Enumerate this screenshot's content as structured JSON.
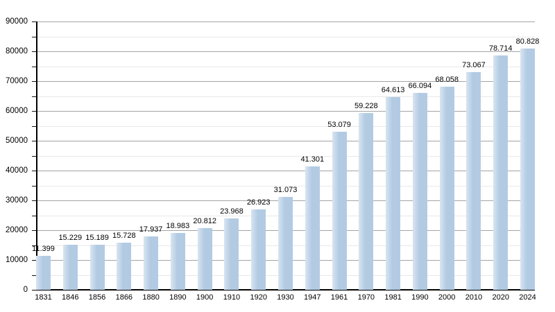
{
  "chart_data": {
    "type": "bar",
    "title": "",
    "xlabel": "",
    "ylabel": "",
    "categories": [
      "1831",
      "1846",
      "1856",
      "1866",
      "1880",
      "1890",
      "1900",
      "1910",
      "1920",
      "1930",
      "1947",
      "1961",
      "1970",
      "1981",
      "1990",
      "2000",
      "2010",
      "2020",
      "2024"
    ],
    "values": [
      11399,
      15229,
      15189,
      15728,
      17937,
      18983,
      20812,
      23968,
      26923,
      31073,
      41301,
      53079,
      59228,
      64613,
      66094,
      68058,
      73067,
      78714,
      80828
    ],
    "value_labels": [
      "11.399",
      "15.229",
      "15.189",
      "15.728",
      "17.937",
      "18.983",
      "20.812",
      "23.968",
      "26.923",
      "31.073",
      "41.301",
      "53.079",
      "59.228",
      "64.613",
      "66.094",
      "68.058",
      "73.067",
      "78.714",
      "80.828"
    ],
    "ylim": [
      0,
      90000
    ],
    "y_major_step": 10000,
    "y_minor_step": 5000,
    "y_tick_labels": [
      "0",
      "10000",
      "20000",
      "30000",
      "40000",
      "50000",
      "60000",
      "70000",
      "80000",
      "90000"
    ],
    "grid": true,
    "legend_position": "none",
    "bar_color": "#b2cbe3",
    "gridline_major_color": "#a4a4a4",
    "gridline_minor_color": "#e8e8e8",
    "axis_color": "#000000",
    "label_color": "#000000"
  }
}
